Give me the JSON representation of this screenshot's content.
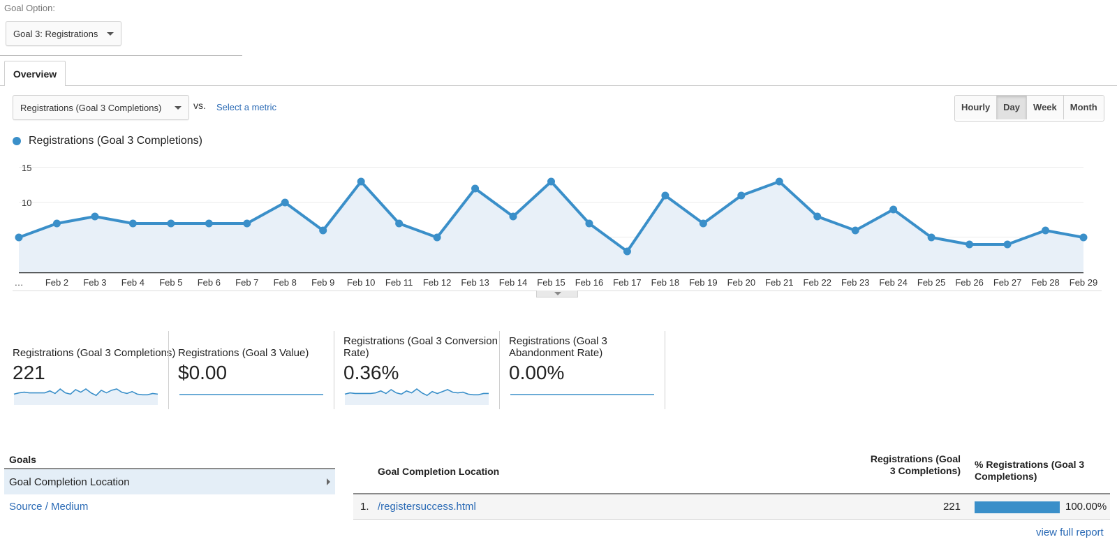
{
  "goal_option": {
    "label": "Goal Option:",
    "selected": "Goal 3: Registrations"
  },
  "tabs": [
    {
      "label": "Overview",
      "active": true
    }
  ],
  "metric_bar": {
    "selected_metric": "Registrations (Goal 3 Completions)",
    "vs_label": "vs.",
    "select_metric_link": "Select a metric",
    "granularity": [
      "Hourly",
      "Day",
      "Week",
      "Month"
    ],
    "active_granularity": "Day"
  },
  "chart_data": {
    "type": "area",
    "legend": [
      "Registrations (Goal 3 Completions)"
    ],
    "legend_placement": "top-left",
    "series": [
      {
        "name": "Registrations (Goal 3 Completions)",
        "color": "#3a8fc9",
        "values": [
          5,
          7,
          8,
          7,
          7,
          7,
          7,
          10,
          6,
          13,
          7,
          5,
          12,
          8,
          13,
          7,
          3,
          11,
          7,
          11,
          13,
          8,
          6,
          9,
          5,
          4,
          4,
          6,
          5
        ]
      }
    ],
    "x_tick_labels": [
      "…",
      "Feb 2",
      "Feb 3",
      "Feb 4",
      "Feb 5",
      "Feb 6",
      "Feb 7",
      "Feb 8",
      "Feb 9",
      "Feb 10",
      "Feb 11",
      "Feb 12",
      "Feb 13",
      "Feb 14",
      "Feb 15",
      "Feb 16",
      "Feb 17",
      "Feb 18",
      "Feb 19",
      "Feb 20",
      "Feb 21",
      "Feb 22",
      "Feb 23",
      "Feb 24",
      "Feb 25",
      "Feb 26",
      "Feb 27",
      "Feb 28",
      "Feb 29"
    ],
    "y_ticks": [
      5,
      10,
      15
    ],
    "ylim": [
      0,
      15
    ],
    "grid": true
  },
  "scorecards": [
    {
      "label": "Registrations (Goal 3 Completions)",
      "value": "221",
      "sparkline": [
        5,
        7,
        8,
        7,
        7,
        7,
        7,
        10,
        6,
        13,
        7,
        5,
        12,
        8,
        13,
        7,
        3,
        11,
        7,
        11,
        13,
        8,
        6,
        9,
        5,
        4,
        4,
        6,
        5
      ]
    },
    {
      "label": "Registrations (Goal 3 Value)",
      "value": "$0.00",
      "sparkline": [
        0,
        0,
        0,
        0,
        0,
        0,
        0,
        0,
        0,
        0,
        0,
        0,
        0,
        0,
        0,
        0,
        0,
        0,
        0,
        0,
        0,
        0,
        0,
        0,
        0,
        0,
        0,
        0,
        0
      ]
    },
    {
      "label": "Registrations (Goal 3 Conversion Rate)",
      "value": "0.36%",
      "sparkline": [
        5,
        7,
        6,
        6,
        6,
        6,
        7,
        10,
        6,
        12,
        7,
        5,
        10,
        7,
        13,
        7,
        3,
        9,
        6,
        9,
        12,
        8,
        7,
        8,
        5,
        4,
        4,
        6,
        6
      ]
    },
    {
      "label": "Registrations (Goal 3 Abandonment Rate)",
      "value": "0.00%",
      "sparkline": [
        0,
        0,
        0,
        0,
        0,
        0,
        0,
        0,
        0,
        0,
        0,
        0,
        0,
        0,
        0,
        0,
        0,
        0,
        0,
        0,
        0,
        0,
        0,
        0,
        0,
        0,
        0,
        0,
        0
      ]
    }
  ],
  "goals_panel": {
    "heading": "Goals",
    "items": [
      {
        "label": "Goal Completion Location",
        "active": true
      },
      {
        "label": "Source / Medium",
        "active": false
      }
    ]
  },
  "table": {
    "columns": [
      "Goal Completion Location",
      "Registrations (Goal 3 Completions)",
      "% Registrations (Goal 3 Completions)"
    ],
    "rows": [
      {
        "num": "1.",
        "location": "/registersuccess.html",
        "value": "221",
        "pct": "100.00%",
        "share": 1.0
      }
    ],
    "view_full_report": "view full report"
  }
}
